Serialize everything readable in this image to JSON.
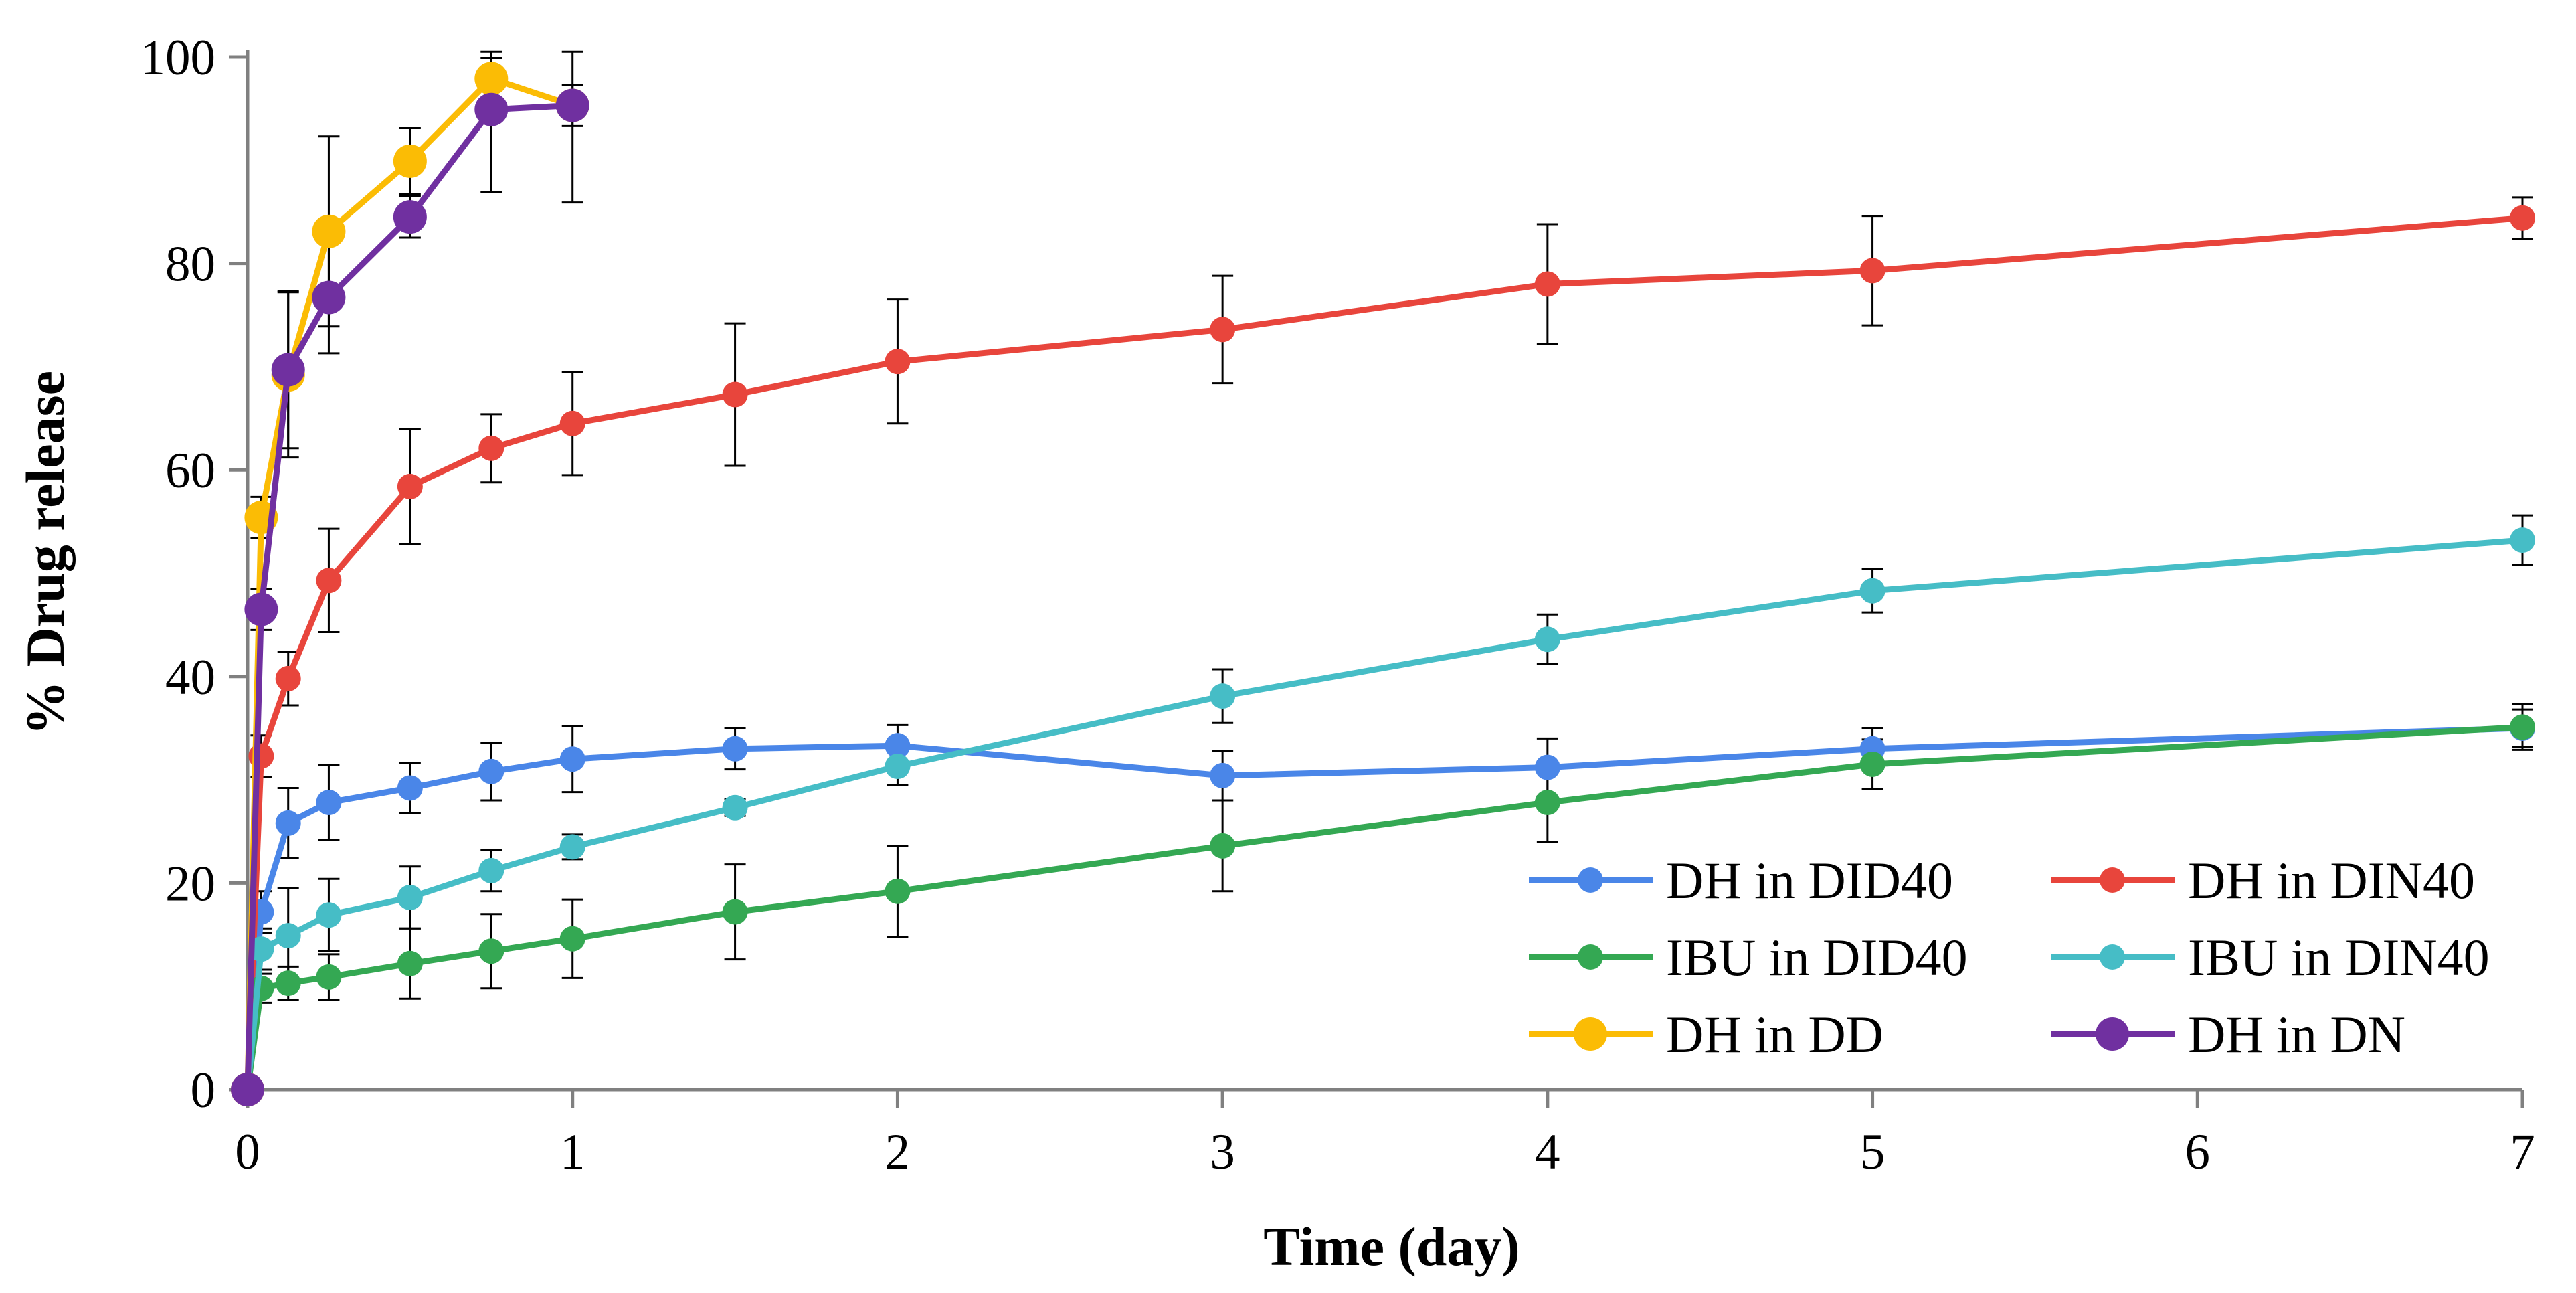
{
  "chart_data": {
    "type": "line",
    "title": "",
    "xlabel": "Time (day)",
    "ylabel": "% Drug release",
    "xlim": [
      0,
      7
    ],
    "ylim": [
      0,
      100
    ],
    "x_ticks": [
      0,
      1,
      2,
      3,
      4,
      5,
      6,
      7
    ],
    "y_ticks": [
      0,
      20,
      40,
      60,
      80,
      100
    ],
    "grid": false,
    "error_bars": true,
    "legend_position": "bottom-right",
    "legend_columns": 2,
    "series": [
      {
        "name": "DH in DID40",
        "color": "#4a86e8",
        "x": [
          0,
          0.042,
          0.125,
          0.25,
          0.5,
          0.75,
          1,
          1.5,
          2,
          3,
          4,
          5,
          7
        ],
        "y": [
          0,
          17.2,
          25.8,
          27.8,
          29.2,
          30.8,
          32.0,
          33.0,
          33.3,
          30.4,
          31.2,
          33.0,
          35.0
        ],
        "err": [
          0,
          2.0,
          3.4,
          3.6,
          2.4,
          2.8,
          3.2,
          2.0,
          2.0,
          2.4,
          2.8,
          2.0,
          1.8
        ]
      },
      {
        "name": "DH in DIN40",
        "color": "#e8453c",
        "x": [
          0,
          0.042,
          0.125,
          0.25,
          0.5,
          0.75,
          1,
          1.5,
          2,
          3,
          4,
          5,
          7
        ],
        "y": [
          0,
          32.3,
          39.8,
          49.3,
          58.4,
          62.1,
          64.5,
          67.3,
          70.5,
          73.6,
          78.0,
          79.3,
          84.4
        ],
        "err": [
          0,
          2.0,
          2.6,
          5.0,
          5.6,
          3.3,
          5.0,
          6.9,
          6.0,
          5.2,
          5.8,
          5.3,
          2.0
        ]
      },
      {
        "name": "IBU in DID40",
        "color": "#34a853",
        "x": [
          0,
          0.042,
          0.125,
          0.25,
          0.5,
          0.75,
          1,
          1.5,
          2,
          3,
          4,
          5,
          7
        ],
        "y": [
          0,
          9.8,
          10.3,
          10.9,
          12.2,
          13.4,
          14.6,
          17.2,
          19.2,
          23.6,
          27.8,
          31.5,
          35.1
        ],
        "err": [
          0,
          1.4,
          1.6,
          2.2,
          3.4,
          3.6,
          3.8,
          4.6,
          4.4,
          4.4,
          3.8,
          2.4,
          2.2
        ]
      },
      {
        "name": "IBU in DIN40",
        "color": "#46bdc6",
        "x": [
          0,
          0.042,
          0.125,
          0.25,
          0.5,
          0.75,
          1,
          1.5,
          2,
          3,
          4,
          5,
          7
        ],
        "y": [
          0,
          13.6,
          14.9,
          16.9,
          18.6,
          21.2,
          23.5,
          27.3,
          31.3,
          38.1,
          43.6,
          48.3,
          53.2
        ],
        "err": [
          0,
          2.0,
          4.6,
          3.5,
          3.0,
          2.0,
          1.2,
          0.8,
          1.8,
          2.6,
          2.4,
          2.1,
          2.4
        ]
      },
      {
        "name": "DH in DD",
        "color": "#fbbc05",
        "x": [
          0,
          0.042,
          0.125,
          0.25,
          0.5,
          0.75,
          1
        ],
        "y": [
          0,
          55.4,
          69.2,
          83.1,
          89.9,
          97.9,
          95.3
        ],
        "err": [
          0,
          2.0,
          8.0,
          9.2,
          3.2,
          2.0,
          2.0
        ]
      },
      {
        "name": "DH in DN",
        "color": "#7030a0",
        "x": [
          0,
          0.042,
          0.125,
          0.25,
          0.5,
          0.75,
          1
        ],
        "y": [
          0,
          46.5,
          69.7,
          76.7,
          84.5,
          94.9,
          95.3
        ],
        "err": [
          0,
          2.0,
          7.6,
          5.4,
          2.0,
          8.0,
          9.4
        ]
      }
    ]
  }
}
